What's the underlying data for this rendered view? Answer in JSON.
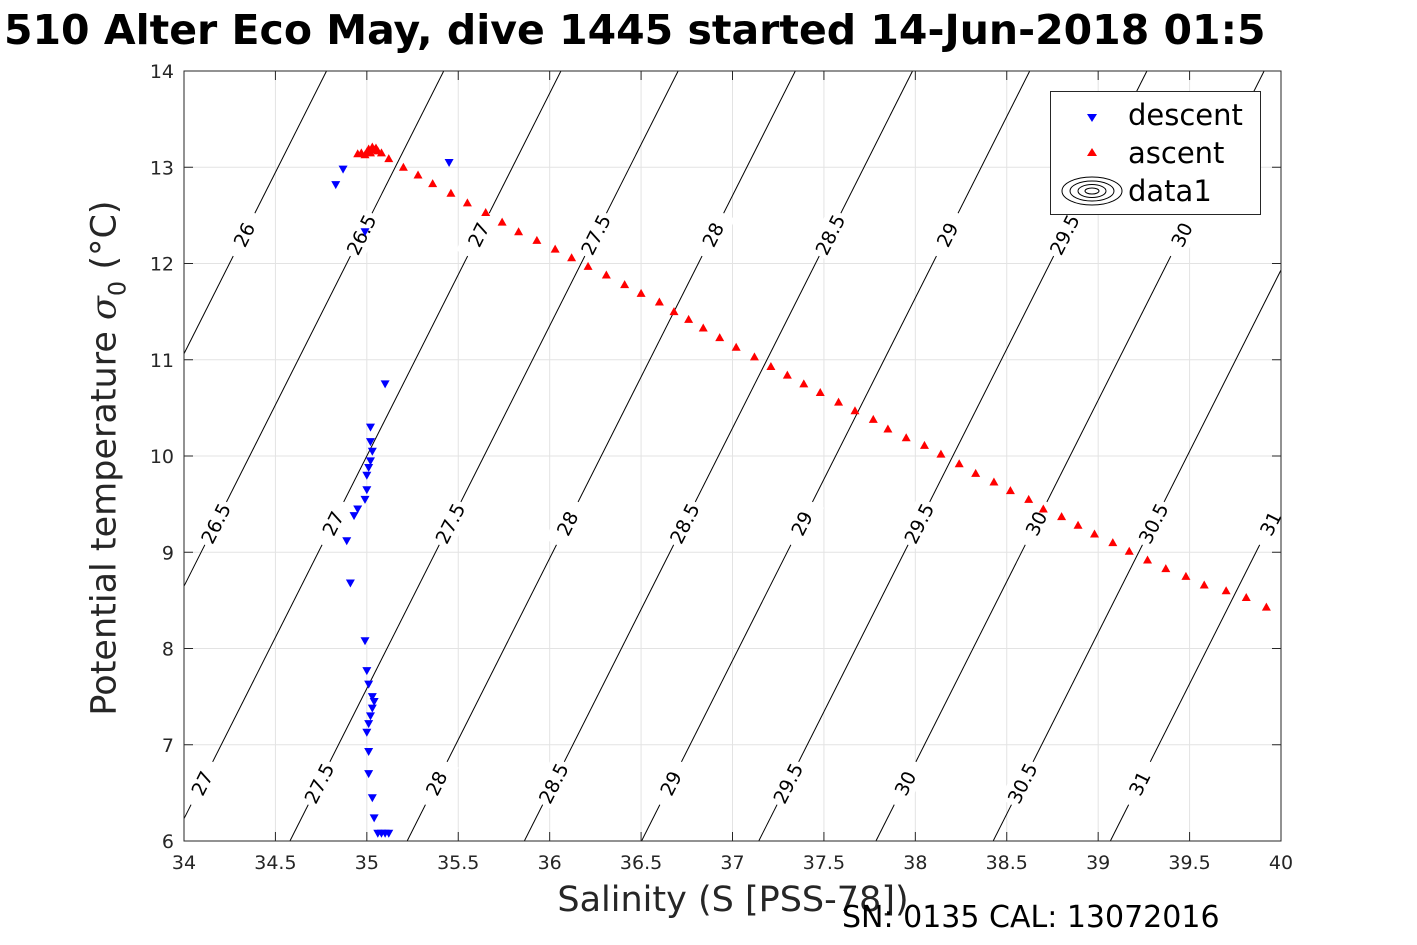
{
  "title": "510 Alter Eco May, dive 1445 started 14-Jun-2018 01:5",
  "footer": "SN: 0135  CAL: 13072016",
  "ylabel": {
    "prefix": "Potential temperature ",
    "symbol": "σ",
    "subscript": "0",
    "suffix": " (°C)"
  },
  "legend": [
    {
      "label": "descent",
      "marker": "triangle-down",
      "color": "#0000ff"
    },
    {
      "label": "ascent",
      "marker": "triangle-up",
      "color": "#ff0000"
    },
    {
      "label": "data1",
      "marker": "contour",
      "color": "#000000"
    }
  ],
  "chart_data": {
    "type": "scatter",
    "xlabel": "Salinity (S [PSS-78])",
    "xlim": [
      34,
      40
    ],
    "ylim": [
      6,
      14
    ],
    "xticks": [
      "34",
      "34.5",
      "35",
      "35.5",
      "36",
      "36.5",
      "37",
      "37.5",
      "38",
      "38.5",
      "39",
      "39.5",
      "40"
    ],
    "yticks": [
      "6",
      "7",
      "8",
      "9",
      "10",
      "11",
      "12",
      "13",
      "14"
    ],
    "grid": true,
    "legend_position": "top-right",
    "series": [
      {
        "name": "descent",
        "color": "#0000ff",
        "marker": "triangle-down",
        "points": [
          [
            34.83,
            12.82
          ],
          [
            34.87,
            12.98
          ],
          [
            34.99,
            12.33
          ],
          [
            35.45,
            13.05
          ],
          [
            35.1,
            10.75
          ],
          [
            35.02,
            10.3
          ],
          [
            35.02,
            10.15
          ],
          [
            35.03,
            10.05
          ],
          [
            35.02,
            9.95
          ],
          [
            35.01,
            9.88
          ],
          [
            35.0,
            9.8
          ],
          [
            35.0,
            9.65
          ],
          [
            34.99,
            9.55
          ],
          [
            34.95,
            9.45
          ],
          [
            34.93,
            9.38
          ],
          [
            34.89,
            9.12
          ],
          [
            34.91,
            8.68
          ],
          [
            34.99,
            8.08
          ],
          [
            35.0,
            7.77
          ],
          [
            35.01,
            7.63
          ],
          [
            35.03,
            7.5
          ],
          [
            35.04,
            7.45
          ],
          [
            35.03,
            7.38
          ],
          [
            35.02,
            7.3
          ],
          [
            35.01,
            7.22
          ],
          [
            35.0,
            7.13
          ],
          [
            35.01,
            6.93
          ],
          [
            35.01,
            6.7
          ],
          [
            35.03,
            6.45
          ],
          [
            35.04,
            6.24
          ],
          [
            35.06,
            6.08
          ],
          [
            35.08,
            6.08
          ],
          [
            35.1,
            6.08
          ],
          [
            35.12,
            6.08
          ]
        ]
      },
      {
        "name": "ascent",
        "color": "#ff0000",
        "marker": "triangle-up",
        "points": [
          [
            34.95,
            13.14
          ],
          [
            34.97,
            13.15
          ],
          [
            34.99,
            13.13
          ],
          [
            35.0,
            13.16
          ],
          [
            35.01,
            13.19
          ],
          [
            35.02,
            13.15
          ],
          [
            35.03,
            13.21
          ],
          [
            35.04,
            13.18
          ],
          [
            35.05,
            13.2
          ],
          [
            35.06,
            13.17
          ],
          [
            35.08,
            13.15
          ],
          [
            35.12,
            13.09
          ],
          [
            35.2,
            13.0
          ],
          [
            35.28,
            12.92
          ],
          [
            35.36,
            12.83
          ],
          [
            35.46,
            12.73
          ],
          [
            35.55,
            12.63
          ],
          [
            35.65,
            12.53
          ],
          [
            35.74,
            12.43
          ],
          [
            35.83,
            12.33
          ],
          [
            35.93,
            12.24
          ],
          [
            36.03,
            12.15
          ],
          [
            36.12,
            12.06
          ],
          [
            36.21,
            11.97
          ],
          [
            36.31,
            11.88
          ],
          [
            36.41,
            11.78
          ],
          [
            36.5,
            11.69
          ],
          [
            36.6,
            11.6
          ],
          [
            36.68,
            11.5
          ],
          [
            36.76,
            11.42
          ],
          [
            36.84,
            11.33
          ],
          [
            36.93,
            11.23
          ],
          [
            37.02,
            11.13
          ],
          [
            37.12,
            11.03
          ],
          [
            37.21,
            10.93
          ],
          [
            37.3,
            10.84
          ],
          [
            37.39,
            10.75
          ],
          [
            37.48,
            10.66
          ],
          [
            37.58,
            10.56
          ],
          [
            37.67,
            10.47
          ],
          [
            37.77,
            10.38
          ],
          [
            37.85,
            10.28
          ],
          [
            37.95,
            10.19
          ],
          [
            38.05,
            10.11
          ],
          [
            38.14,
            10.02
          ],
          [
            38.24,
            9.92
          ],
          [
            38.33,
            9.82
          ],
          [
            38.43,
            9.73
          ],
          [
            38.52,
            9.64
          ],
          [
            38.62,
            9.55
          ],
          [
            38.7,
            9.45
          ],
          [
            38.8,
            9.37
          ],
          [
            38.89,
            9.28
          ],
          [
            38.98,
            9.19
          ],
          [
            39.08,
            9.1
          ],
          [
            39.17,
            9.01
          ],
          [
            39.27,
            8.92
          ],
          [
            39.37,
            8.83
          ],
          [
            39.48,
            8.75
          ],
          [
            39.58,
            8.66
          ],
          [
            39.7,
            8.6
          ],
          [
            39.81,
            8.53
          ],
          [
            39.92,
            8.43
          ]
        ]
      },
      {
        "name": "data1",
        "type": "contour",
        "color": "#000000",
        "levels": [
          "26",
          "26.5",
          "27",
          "27.5",
          "28",
          "28.5",
          "29",
          "29.5",
          "30",
          "30.5",
          "31"
        ]
      }
    ]
  }
}
